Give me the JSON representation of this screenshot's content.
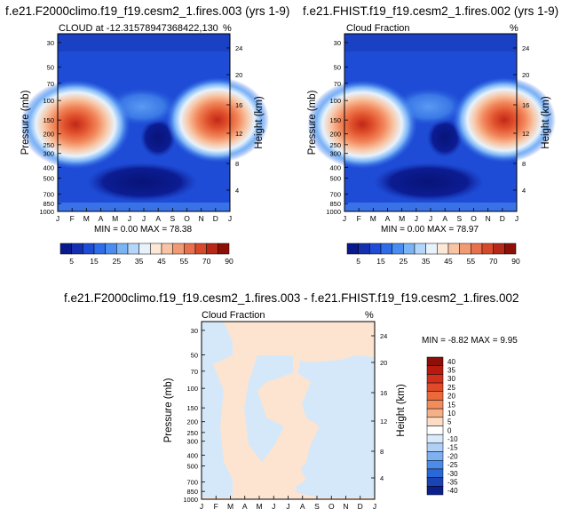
{
  "chart_data": [
    {
      "type": "heatmap",
      "title": "f.e21.F2000climo.f19_f19.cesm2_1.fires.003 (yrs 1-9)",
      "subtitle": "CLOUD at -12.31578947368422,130",
      "units": "%",
      "xlabel": "",
      "ylabel": "Pressure (mb)",
      "ylabel_right": "Height (km)",
      "x_ticks": [
        "J",
        "F",
        "M",
        "A",
        "M",
        "J",
        "J",
        "A",
        "S",
        "O",
        "N",
        "D",
        "J"
      ],
      "y_ticks": [
        30,
        50,
        70,
        100,
        150,
        200,
        250,
        300,
        400,
        500,
        700,
        850,
        1000
      ],
      "y_right_ticks": [
        24,
        20,
        16,
        12,
        8,
        4
      ],
      "stats_text": "MIN =   0.00 MAX =  78.38",
      "colorbar_labels": [
        "5",
        "15",
        "25",
        "35",
        "45",
        "55",
        "70",
        "90"
      ]
    },
    {
      "type": "heatmap",
      "title": "f.e21.FHIST.f19_f19.cesm2_1.fires.002 (yrs 1-9)",
      "subtitle": "Cloud Fraction",
      "units": "%",
      "xlabel": "",
      "ylabel": "Pressure (mb)",
      "ylabel_right": "Height (km)",
      "x_ticks": [
        "J",
        "F",
        "M",
        "A",
        "M",
        "J",
        "J",
        "A",
        "S",
        "O",
        "N",
        "D",
        "J"
      ],
      "y_ticks": [
        30,
        50,
        70,
        100,
        150,
        200,
        250,
        300,
        400,
        500,
        700,
        850,
        1000
      ],
      "y_right_ticks": [
        24,
        20,
        16,
        12,
        8,
        4
      ],
      "stats_text": "MIN =   0.00 MAX =  78.97",
      "colorbar_labels": [
        "5",
        "15",
        "25",
        "35",
        "45",
        "55",
        "70",
        "90"
      ]
    },
    {
      "type": "heatmap",
      "title": "f.e21.F2000climo.f19_f19.cesm2_1.fires.003 - f.e21.FHIST.f19_f19.cesm2_1.fires.002",
      "subtitle": "Cloud Fraction",
      "units": "%",
      "xlabel": "",
      "ylabel": "Pressure (mb)",
      "ylabel_right": "Height (km)",
      "x_ticks": [
        "J",
        "F",
        "M",
        "A",
        "M",
        "J",
        "J",
        "A",
        "S",
        "O",
        "N",
        "D",
        "J"
      ],
      "y_ticks": [
        30,
        50,
        70,
        100,
        150,
        200,
        250,
        300,
        400,
        500,
        700,
        850,
        1000
      ],
      "y_right_ticks": [
        24,
        20,
        16,
        12,
        8,
        4
      ],
      "stats_text": "MIN =  -8.82 MAX =   9.95",
      "colorbar_labels": [
        "40",
        "35",
        "30",
        "25",
        "20",
        "15",
        "10",
        "5",
        "0",
        "-10",
        "-15",
        "-20",
        "-25",
        "-30",
        "-35",
        "-40"
      ]
    }
  ],
  "colors": {
    "abs_scale": [
      "#0a1a8c",
      "#1430b0",
      "#1e4cd6",
      "#2f6ce8",
      "#4a8cf0",
      "#7ab4f6",
      "#b4d6fa",
      "#e8f2fc",
      "#fde8d8",
      "#f9c4a4",
      "#f29a74",
      "#e8704c",
      "#d64a2c",
      "#b82818",
      "#8c1008"
    ],
    "diff_scale": [
      "#8c1008",
      "#b81a10",
      "#d0301c",
      "#e04a28",
      "#ea6a3c",
      "#f28c5c",
      "#f6b088",
      "#fcdcc4",
      "#ffffff",
      "#d8eafc",
      "#b0d0f8",
      "#7eb0f2",
      "#4c8ce8",
      "#2a68d8",
      "#1a44b4",
      "#0c208c"
    ],
    "base_dark": "#0c1a96",
    "diff_pos": "#fce4d0",
    "diff_neg": "#d4e8fa"
  }
}
